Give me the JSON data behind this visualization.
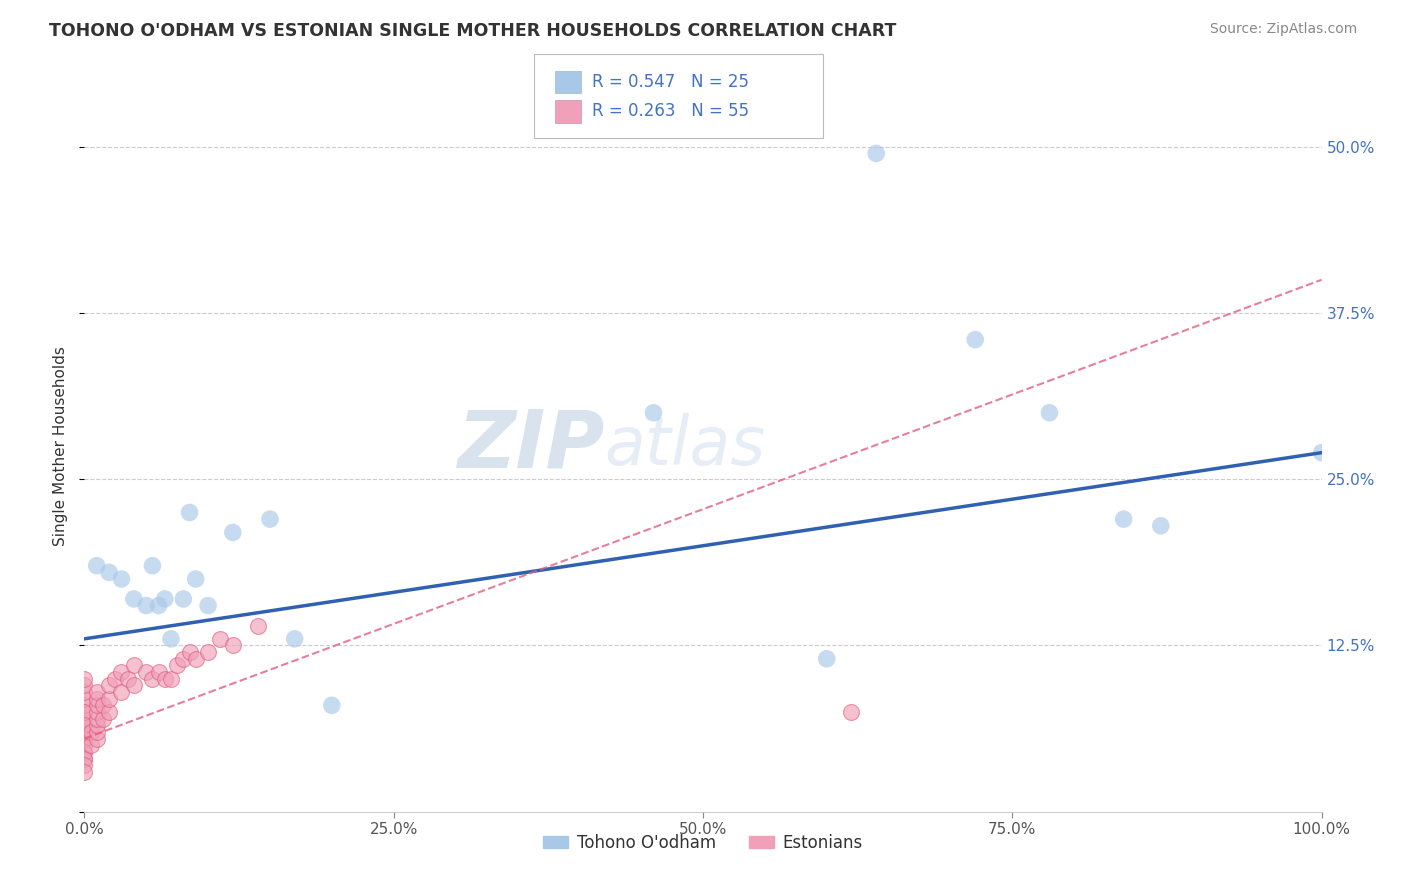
{
  "title": "TOHONO O'ODHAM VS ESTONIAN SINGLE MOTHER HOUSEHOLDS CORRELATION CHART",
  "source": "Source: ZipAtlas.com",
  "ylabel": "Single Mother Households",
  "xlim": [
    0,
    1.0
  ],
  "ylim": [
    0,
    0.55
  ],
  "xticks": [
    0.0,
    0.25,
    0.5,
    0.75,
    1.0
  ],
  "xticklabels": [
    "0.0%",
    "25.0%",
    "50.0%",
    "75.0%",
    "100.0%"
  ],
  "yticks": [
    0.0,
    0.125,
    0.25,
    0.375,
    0.5
  ],
  "yticklabels": [
    "",
    "12.5%",
    "25.0%",
    "37.5%",
    "50.0%"
  ],
  "legend_label1": "Tohono O'odham",
  "legend_label2": "Estonians",
  "color_blue": "#A8C8E8",
  "color_pink": "#F0A0B8",
  "color_blue_line": "#3060B0",
  "color_pink_line": "#E06080",
  "background": "#FFFFFF",
  "grid_color": "#CCCCCC",
  "tohono_x": [
    0.01,
    0.02,
    0.03,
    0.04,
    0.05,
    0.055,
    0.06,
    0.065,
    0.07,
    0.08,
    0.085,
    0.09,
    0.1,
    0.12,
    0.15,
    0.17,
    0.2,
    0.46,
    0.64,
    0.72,
    0.78,
    0.84,
    0.87,
    0.6,
    1.0
  ],
  "tohono_y": [
    0.185,
    0.18,
    0.175,
    0.16,
    0.155,
    0.185,
    0.155,
    0.16,
    0.13,
    0.16,
    0.225,
    0.175,
    0.155,
    0.21,
    0.22,
    0.13,
    0.08,
    0.3,
    0.495,
    0.355,
    0.3,
    0.22,
    0.215,
    0.115,
    0.27
  ],
  "estonian_x": [
    0.0,
    0.0,
    0.0,
    0.0,
    0.0,
    0.0,
    0.0,
    0.0,
    0.0,
    0.0,
    0.0,
    0.0,
    0.0,
    0.0,
    0.0,
    0.0,
    0.0,
    0.0,
    0.0,
    0.0,
    0.005,
    0.005,
    0.01,
    0.01,
    0.01,
    0.01,
    0.01,
    0.01,
    0.01,
    0.01,
    0.015,
    0.015,
    0.02,
    0.02,
    0.02,
    0.025,
    0.03,
    0.03,
    0.035,
    0.04,
    0.04,
    0.05,
    0.055,
    0.06,
    0.065,
    0.07,
    0.075,
    0.08,
    0.085,
    0.09,
    0.1,
    0.11,
    0.12,
    0.14,
    0.62
  ],
  "estonian_y": [
    0.04,
    0.045,
    0.05,
    0.055,
    0.06,
    0.065,
    0.07,
    0.075,
    0.08,
    0.085,
    0.09,
    0.095,
    0.1,
    0.075,
    0.065,
    0.055,
    0.045,
    0.04,
    0.035,
    0.03,
    0.05,
    0.06,
    0.055,
    0.06,
    0.065,
    0.07,
    0.075,
    0.08,
    0.085,
    0.09,
    0.07,
    0.08,
    0.075,
    0.085,
    0.095,
    0.1,
    0.09,
    0.105,
    0.1,
    0.095,
    0.11,
    0.105,
    0.1,
    0.105,
    0.1,
    0.1,
    0.11,
    0.115,
    0.12,
    0.115,
    0.12,
    0.13,
    0.125,
    0.14,
    0.075
  ],
  "blue_line_x0": 0.0,
  "blue_line_y0": 0.13,
  "blue_line_x1": 1.0,
  "blue_line_y1": 0.27,
  "pink_line_x0": 0.0,
  "pink_line_y0": 0.055,
  "pink_line_x1": 1.0,
  "pink_line_y1": 0.4
}
